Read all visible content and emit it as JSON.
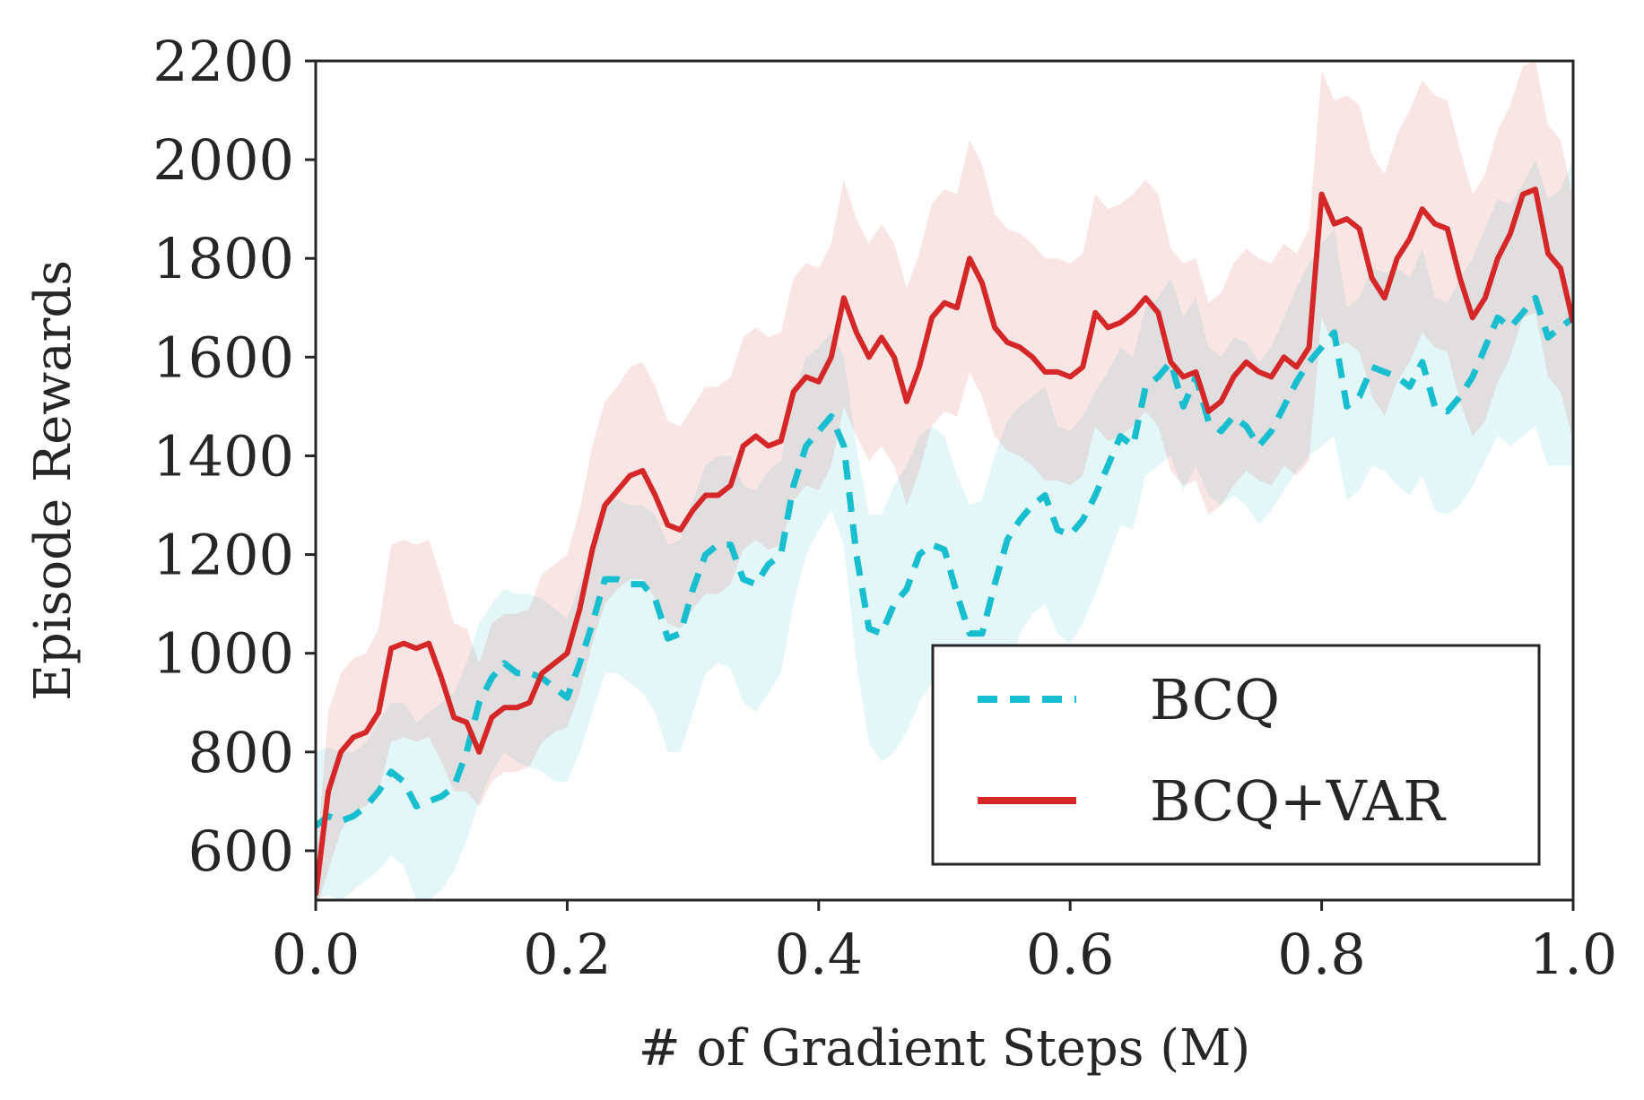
{
  "chart_data": {
    "type": "line",
    "title": "",
    "xlabel": "# of Gradient Steps (M)",
    "ylabel": "Episode Rewards",
    "xlim": [
      0.0,
      1.0
    ],
    "ylim": [
      500,
      2200
    ],
    "xticks": [
      0.0,
      0.2,
      0.4,
      0.6,
      0.8,
      1.0
    ],
    "xtick_labels": [
      "0.0",
      "0.2",
      "0.4",
      "0.6",
      "0.8",
      "1.0"
    ],
    "yticks": [
      600,
      800,
      1000,
      1200,
      1400,
      1600,
      1800,
      2000,
      2200
    ],
    "ytick_labels": [
      "600",
      "800",
      "1000",
      "1200",
      "1400",
      "1600",
      "1800",
      "2000",
      "2200"
    ],
    "grid": false,
    "legend_position": "bottom-right",
    "series": [
      {
        "name": "BCQ",
        "color": "#17becf",
        "style": "dashed",
        "shaded_band": true,
        "x": [
          0.0,
          0.01,
          0.02,
          0.03,
          0.04,
          0.05,
          0.06,
          0.07,
          0.08,
          0.09,
          0.1,
          0.11,
          0.12,
          0.13,
          0.14,
          0.15,
          0.16,
          0.17,
          0.18,
          0.19,
          0.2,
          0.21,
          0.22,
          0.23,
          0.24,
          0.25,
          0.26,
          0.27,
          0.28,
          0.29,
          0.3,
          0.31,
          0.32,
          0.33,
          0.34,
          0.35,
          0.36,
          0.37,
          0.38,
          0.39,
          0.4,
          0.41,
          0.42,
          0.43,
          0.44,
          0.45,
          0.46,
          0.47,
          0.48,
          0.49,
          0.5,
          0.51,
          0.52,
          0.53,
          0.54,
          0.55,
          0.56,
          0.57,
          0.58,
          0.59,
          0.6,
          0.61,
          0.62,
          0.63,
          0.64,
          0.65,
          0.66,
          0.67,
          0.68,
          0.69,
          0.7,
          0.71,
          0.72,
          0.73,
          0.74,
          0.75,
          0.76,
          0.77,
          0.78,
          0.79,
          0.8,
          0.81,
          0.82,
          0.83,
          0.84,
          0.85,
          0.86,
          0.87,
          0.88,
          0.89,
          0.9,
          0.91,
          0.92,
          0.93,
          0.94,
          0.95,
          0.96,
          0.97,
          0.98,
          0.99,
          1.0
        ],
        "y": [
          650,
          670,
          660,
          670,
          690,
          720,
          760,
          740,
          690,
          700,
          710,
          730,
          800,
          900,
          950,
          980,
          960,
          960,
          950,
          930,
          910,
          980,
          1060,
          1150,
          1150,
          1140,
          1140,
          1110,
          1030,
          1040,
          1130,
          1200,
          1220,
          1220,
          1150,
          1140,
          1180,
          1200,
          1340,
          1420,
          1450,
          1480,
          1420,
          1200,
          1050,
          1040,
          1100,
          1130,
          1200,
          1220,
          1210,
          1120,
          1040,
          1040,
          1140,
          1230,
          1270,
          1300,
          1320,
          1250,
          1240,
          1270,
          1320,
          1380,
          1440,
          1420,
          1540,
          1560,
          1590,
          1500,
          1560,
          1470,
          1450,
          1480,
          1460,
          1420,
          1450,
          1500,
          1550,
          1590,
          1620,
          1650,
          1500,
          1520,
          1580,
          1570,
          1560,
          1540,
          1590,
          1500,
          1490,
          1520,
          1560,
          1620,
          1680,
          1660,
          1690,
          1720,
          1640,
          1660,
          1680
        ],
        "band_lower": [
          500,
          510,
          500,
          520,
          540,
          560,
          590,
          570,
          500,
          500,
          520,
          560,
          620,
          700,
          760,
          800,
          780,
          770,
          760,
          740,
          740,
          800,
          880,
          960,
          960,
          940,
          920,
          880,
          800,
          800,
          880,
          960,
          980,
          970,
          900,
          880,
          920,
          960,
          1100,
          1200,
          1250,
          1290,
          1220,
          980,
          820,
          780,
          800,
          840,
          900,
          940,
          940,
          860,
          780,
          760,
          840,
          960,
          1040,
          1080,
          1100,
          1040,
          1020,
          1060,
          1120,
          1190,
          1260,
          1250,
          1360,
          1380,
          1400,
          1330,
          1380,
          1320,
          1300,
          1320,
          1300,
          1260,
          1290,
          1330,
          1370,
          1400,
          1420,
          1440,
          1310,
          1330,
          1380,
          1370,
          1340,
          1320,
          1360,
          1290,
          1280,
          1300,
          1340,
          1390,
          1440,
          1420,
          1440,
          1460,
          1380,
          1380,
          1380
        ],
        "band_upper": [
          800,
          810,
          800,
          800,
          820,
          860,
          900,
          900,
          860,
          880,
          900,
          920,
          980,
          1060,
          1100,
          1130,
          1120,
          1120,
          1110,
          1090,
          1070,
          1140,
          1220,
          1310,
          1310,
          1300,
          1300,
          1280,
          1220,
          1230,
          1310,
          1380,
          1400,
          1400,
          1340,
          1330,
          1370,
          1390,
          1520,
          1600,
          1620,
          1650,
          1600,
          1420,
          1280,
          1280,
          1340,
          1380,
          1440,
          1460,
          1440,
          1360,
          1300,
          1310,
          1400,
          1470,
          1500,
          1520,
          1540,
          1460,
          1450,
          1480,
          1530,
          1570,
          1620,
          1600,
          1700,
          1720,
          1760,
          1680,
          1720,
          1620,
          1600,
          1640,
          1630,
          1590,
          1620,
          1680,
          1740,
          1790,
          1830,
          1860,
          1700,
          1720,
          1780,
          1770,
          1780,
          1760,
          1820,
          1720,
          1710,
          1760,
          1800,
          1860,
          1920,
          1910,
          1950,
          2000,
          1920,
          1940,
          2000
        ]
      },
      {
        "name": "BCQ+VAR",
        "color": "#d62728",
        "style": "solid",
        "shaded_band": true,
        "x": [
          0.0,
          0.01,
          0.02,
          0.03,
          0.04,
          0.05,
          0.06,
          0.07,
          0.08,
          0.09,
          0.1,
          0.11,
          0.12,
          0.13,
          0.14,
          0.15,
          0.16,
          0.17,
          0.18,
          0.19,
          0.2,
          0.21,
          0.22,
          0.23,
          0.24,
          0.25,
          0.26,
          0.27,
          0.28,
          0.29,
          0.3,
          0.31,
          0.32,
          0.33,
          0.34,
          0.35,
          0.36,
          0.37,
          0.38,
          0.39,
          0.4,
          0.41,
          0.42,
          0.43,
          0.44,
          0.45,
          0.46,
          0.47,
          0.48,
          0.49,
          0.5,
          0.51,
          0.52,
          0.53,
          0.54,
          0.55,
          0.56,
          0.57,
          0.58,
          0.59,
          0.6,
          0.61,
          0.62,
          0.63,
          0.64,
          0.65,
          0.66,
          0.67,
          0.68,
          0.69,
          0.7,
          0.71,
          0.72,
          0.73,
          0.74,
          0.75,
          0.76,
          0.77,
          0.78,
          0.79,
          0.8,
          0.81,
          0.82,
          0.83,
          0.84,
          0.85,
          0.86,
          0.87,
          0.88,
          0.89,
          0.9,
          0.91,
          0.92,
          0.93,
          0.94,
          0.95,
          0.96,
          0.97,
          0.98,
          0.99,
          1.0
        ],
        "y": [
          510,
          720,
          800,
          830,
          840,
          880,
          1010,
          1020,
          1010,
          1020,
          950,
          870,
          860,
          800,
          870,
          890,
          890,
          900,
          960,
          980,
          1000,
          1090,
          1210,
          1300,
          1330,
          1360,
          1370,
          1320,
          1260,
          1250,
          1290,
          1320,
          1320,
          1340,
          1420,
          1440,
          1420,
          1430,
          1530,
          1560,
          1550,
          1600,
          1720,
          1650,
          1600,
          1640,
          1600,
          1510,
          1580,
          1680,
          1710,
          1700,
          1800,
          1750,
          1660,
          1630,
          1620,
          1600,
          1570,
          1570,
          1560,
          1580,
          1690,
          1660,
          1670,
          1690,
          1720,
          1690,
          1590,
          1560,
          1570,
          1490,
          1510,
          1560,
          1590,
          1570,
          1560,
          1600,
          1580,
          1620,
          1930,
          1870,
          1880,
          1860,
          1760,
          1720,
          1800,
          1840,
          1900,
          1870,
          1860,
          1760,
          1680,
          1720,
          1800,
          1850,
          1930,
          1940,
          1810,
          1780,
          1670
        ],
        "band_lower": [
          480,
          560,
          640,
          680,
          690,
          720,
          820,
          830,
          820,
          830,
          780,
          720,
          720,
          690,
          740,
          760,
          760,
          770,
          820,
          840,
          850,
          920,
          1020,
          1100,
          1130,
          1150,
          1150,
          1110,
          1060,
          1050,
          1090,
          1120,
          1120,
          1140,
          1210,
          1230,
          1210,
          1220,
          1310,
          1340,
          1330,
          1380,
          1500,
          1440,
          1390,
          1420,
          1380,
          1300,
          1370,
          1460,
          1490,
          1480,
          1570,
          1520,
          1440,
          1410,
          1400,
          1380,
          1350,
          1350,
          1340,
          1360,
          1460,
          1430,
          1440,
          1460,
          1490,
          1460,
          1370,
          1340,
          1350,
          1280,
          1300,
          1340,
          1370,
          1350,
          1340,
          1380,
          1360,
          1390,
          1680,
          1620,
          1630,
          1610,
          1520,
          1480,
          1550,
          1590,
          1650,
          1620,
          1610,
          1510,
          1440,
          1470,
          1550,
          1600,
          1680,
          1690,
          1560,
          1530,
          1430
        ],
        "band_upper": [
          560,
          880,
          960,
          990,
          1000,
          1050,
          1220,
          1230,
          1220,
          1230,
          1150,
          1060,
          1050,
          980,
          1060,
          1080,
          1080,
          1090,
          1160,
          1180,
          1200,
          1290,
          1420,
          1510,
          1540,
          1580,
          1590,
          1540,
          1470,
          1460,
          1500,
          1540,
          1540,
          1560,
          1640,
          1660,
          1640,
          1650,
          1760,
          1790,
          1780,
          1830,
          1960,
          1880,
          1830,
          1870,
          1830,
          1740,
          1810,
          1910,
          1940,
          1930,
          2040,
          1990,
          1890,
          1860,
          1850,
          1830,
          1800,
          1800,
          1790,
          1810,
          1930,
          1900,
          1910,
          1930,
          1960,
          1930,
          1820,
          1790,
          1800,
          1710,
          1730,
          1790,
          1820,
          1800,
          1790,
          1830,
          1810,
          1860,
          2180,
          2120,
          2130,
          2110,
          2010,
          1970,
          2050,
          2100,
          2160,
          2130,
          2120,
          2020,
          1930,
          1970,
          2060,
          2110,
          2190,
          2200,
          2070,
          2040,
          1920
        ]
      }
    ]
  }
}
